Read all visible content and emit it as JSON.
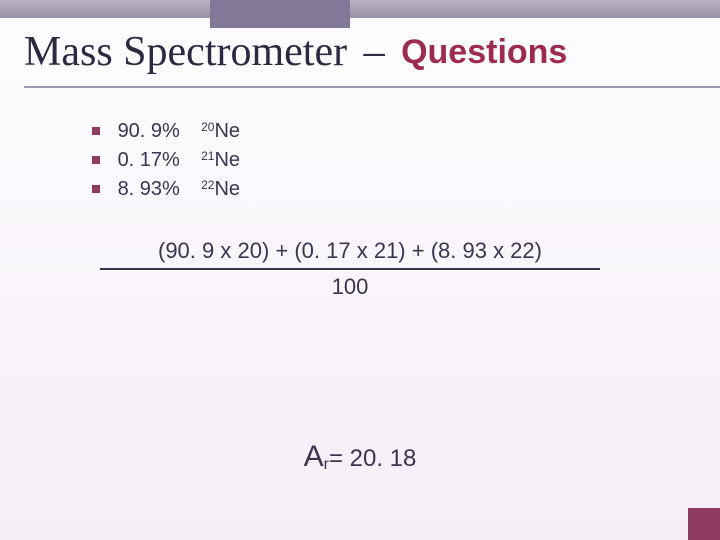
{
  "title": {
    "main": "Mass Spectrometer",
    "dash": "–",
    "sub": "Questions",
    "main_color": "#2e2840",
    "sub_color": "#9c2b4e",
    "main_fontsize": 42,
    "sub_fontsize": 34
  },
  "bullets": [
    {
      "pct": "90. 9%",
      "mass": "20",
      "el": "Ne"
    },
    {
      "pct": "0. 17%",
      "mass": "21",
      "el": "Ne"
    },
    {
      "pct": "8. 93%",
      "mass": "22",
      "el": "Ne"
    }
  ],
  "bullet_marker_color": "#8f3b5f",
  "formula": {
    "numerator": "(90. 9 x 20) + (0. 17 x 21) + (8. 93 x 22)",
    "denominator": "100",
    "rule_color": "#3b3550",
    "fontsize": 22
  },
  "result": {
    "symbol_main": "A",
    "symbol_sub": "r",
    "equals": "= ",
    "value": "20. 18"
  },
  "decoration": {
    "top_band_gradient": [
      "#b9b3c2",
      "#9a90a8"
    ],
    "top_block_color": "#847898",
    "corner_color": "#8f3b5f",
    "background_gradient": [
      "#fdfdfe",
      "#f5eef7"
    ]
  }
}
